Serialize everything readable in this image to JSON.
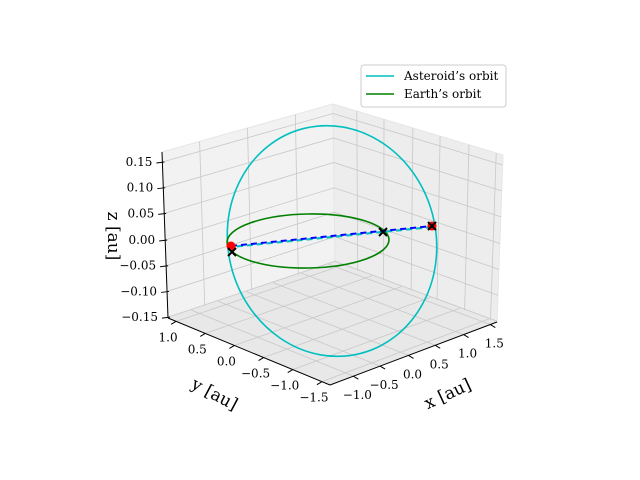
{
  "chart_data": {
    "type": "line",
    "projection": "3d",
    "xlabel": "x [au]",
    "ylabel": "y [au]",
    "zlabel": "z [au]",
    "x_ticks": [
      "−1.0",
      "−0.5",
      "0.0",
      "0.5",
      "1.0",
      "1.5"
    ],
    "y_ticks": [
      "1.0",
      "0.5",
      "0.0",
      "−0.5",
      "−1.0",
      "−1.5"
    ],
    "z_ticks": [
      "0.15",
      "0.10",
      "0.05",
      "0.00",
      "−0.05",
      "−0.10",
      "−0.15"
    ],
    "xlim": [
      -1.2,
      1.7
    ],
    "ylim": [
      -1.6,
      1.2
    ],
    "zlim": [
      -0.16,
      0.16
    ],
    "grid": true,
    "legend_placement": "upper-right",
    "series": [
      {
        "name": "Asteroid’s orbit",
        "color": "#00bfbf",
        "kind": "ellipse"
      },
      {
        "name": "Earth’s orbit",
        "color": "#008000",
        "kind": "ellipse"
      }
    ],
    "markers": {
      "points_color": "#ff0000",
      "cross_color": "#000000",
      "transfer_line_color": "#0000ff",
      "transfer_line_under_color": "#00bfbf"
    }
  }
}
